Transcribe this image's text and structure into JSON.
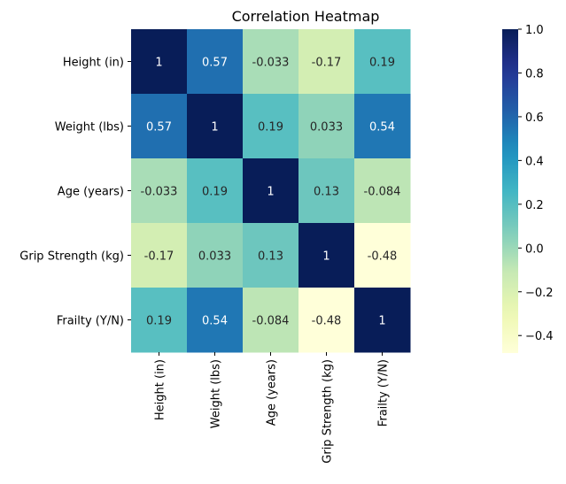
{
  "chart_data": {
    "type": "heatmap",
    "title": "Correlation Heatmap",
    "rows": [
      "Height (in)",
      "Weight (lbs)",
      "Age (years)",
      "Grip Strength (kg)",
      "Frailty (Y/N)"
    ],
    "columns": [
      "Height (in)",
      "Weight (lbs)",
      "Age (years)",
      "Grip Strength (kg)",
      "Frailty (Y/N)"
    ],
    "values": [
      [
        1,
        0.57,
        -0.033,
        -0.17,
        0.19
      ],
      [
        0.57,
        1,
        0.19,
        0.033,
        0.54
      ],
      [
        -0.033,
        0.19,
        1,
        0.13,
        -0.084
      ],
      [
        -0.17,
        0.033,
        0.13,
        1,
        -0.48
      ],
      [
        0.19,
        0.54,
        -0.084,
        -0.48,
        1
      ]
    ],
    "annotations": [
      [
        "1",
        "0.57",
        "-0.033",
        "-0.17",
        "0.19"
      ],
      [
        "0.57",
        "1",
        "0.19",
        "0.033",
        "0.54"
      ],
      [
        "-0.033",
        "0.19",
        "1",
        "0.13",
        "-0.084"
      ],
      [
        "-0.17",
        "0.033",
        "0.13",
        "1",
        "-0.48"
      ],
      [
        "0.19",
        "0.54",
        "-0.084",
        "-0.48",
        "1"
      ]
    ],
    "colormap": "YlGnBu",
    "vmin": -0.48,
    "vmax": 1.0,
    "colorbar_ticks": [
      1.0,
      0.8,
      0.6,
      0.4,
      0.2,
      0.0,
      -0.2,
      -0.4
    ],
    "colorbar_tick_labels": [
      "1.0",
      "0.8",
      "0.6",
      "0.4",
      "0.2",
      "0.0",
      "−0.2",
      "−0.4"
    ],
    "colorbar_position": "right",
    "grid": false
  }
}
